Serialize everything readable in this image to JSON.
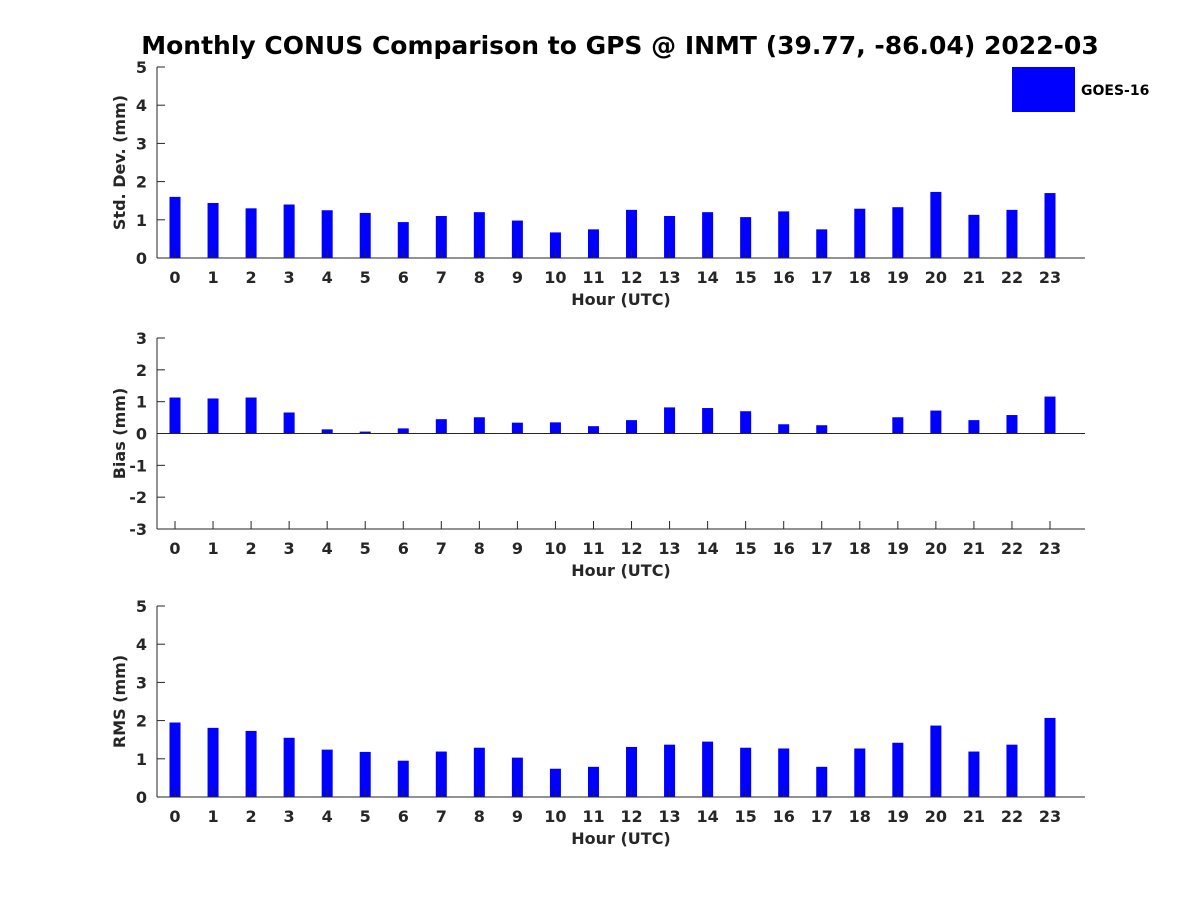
{
  "figure": {
    "title": "Monthly CONUS Comparison to GPS @ INMT (39.77, -86.04) 2022-03",
    "legend": {
      "label": "GOES-16",
      "color": "#0000ff",
      "placement": "top-right"
    }
  },
  "chart_data": [
    {
      "type": "bar",
      "xlabel": "Hour (UTC)",
      "ylabel": "Std. Dev. (mm)",
      "ylim": [
        0,
        5
      ],
      "yticks": [
        0,
        1,
        2,
        3,
        4,
        5
      ],
      "categories": [
        "0",
        "1",
        "2",
        "3",
        "4",
        "5",
        "6",
        "7",
        "8",
        "9",
        "10",
        "11",
        "12",
        "13",
        "14",
        "15",
        "16",
        "17",
        "18",
        "19",
        "20",
        "21",
        "22",
        "23"
      ],
      "series": [
        {
          "name": "GOES-16",
          "color": "#0000ff",
          "values": [
            1.6,
            1.44,
            1.3,
            1.4,
            1.25,
            1.18,
            0.94,
            1.1,
            1.2,
            0.98,
            0.67,
            0.75,
            1.26,
            1.1,
            1.2,
            1.07,
            1.22,
            0.75,
            1.29,
            1.33,
            1.73,
            1.13,
            1.26,
            1.7
          ]
        }
      ],
      "grid": false
    },
    {
      "type": "bar",
      "xlabel": "Hour (UTC)",
      "ylabel": "Bias (mm)",
      "ylim": [
        -3,
        3
      ],
      "yticks": [
        -3,
        -2,
        -1,
        0,
        1,
        2,
        3
      ],
      "categories": [
        "0",
        "1",
        "2",
        "3",
        "4",
        "5",
        "6",
        "7",
        "8",
        "9",
        "10",
        "11",
        "12",
        "13",
        "14",
        "15",
        "16",
        "17",
        "18",
        "19",
        "20",
        "21",
        "22",
        "23"
      ],
      "series": [
        {
          "name": "GOES-16",
          "color": "#0000ff",
          "values": [
            1.13,
            1.1,
            1.13,
            0.66,
            0.13,
            0.06,
            0.16,
            0.45,
            0.51,
            0.34,
            0.35,
            0.23,
            0.42,
            0.82,
            0.8,
            0.7,
            0.29,
            0.26,
            0.0,
            0.51,
            0.72,
            0.42,
            0.58,
            1.16
          ]
        }
      ],
      "grid": false
    },
    {
      "type": "bar",
      "xlabel": "Hour (UTC)",
      "ylabel": "RMS (mm)",
      "ylim": [
        0,
        5
      ],
      "yticks": [
        0,
        1,
        2,
        3,
        4,
        5
      ],
      "categories": [
        "0",
        "1",
        "2",
        "3",
        "4",
        "5",
        "6",
        "7",
        "8",
        "9",
        "10",
        "11",
        "12",
        "13",
        "14",
        "15",
        "16",
        "17",
        "18",
        "19",
        "20",
        "21",
        "22",
        "23"
      ],
      "series": [
        {
          "name": "GOES-16",
          "color": "#0000ff",
          "values": [
            1.95,
            1.81,
            1.73,
            1.55,
            1.24,
            1.18,
            0.95,
            1.19,
            1.29,
            1.03,
            0.74,
            0.79,
            1.31,
            1.37,
            1.45,
            1.29,
            1.27,
            0.79,
            1.27,
            1.42,
            1.87,
            1.19,
            1.37,
            2.07
          ]
        }
      ],
      "grid": false
    }
  ]
}
